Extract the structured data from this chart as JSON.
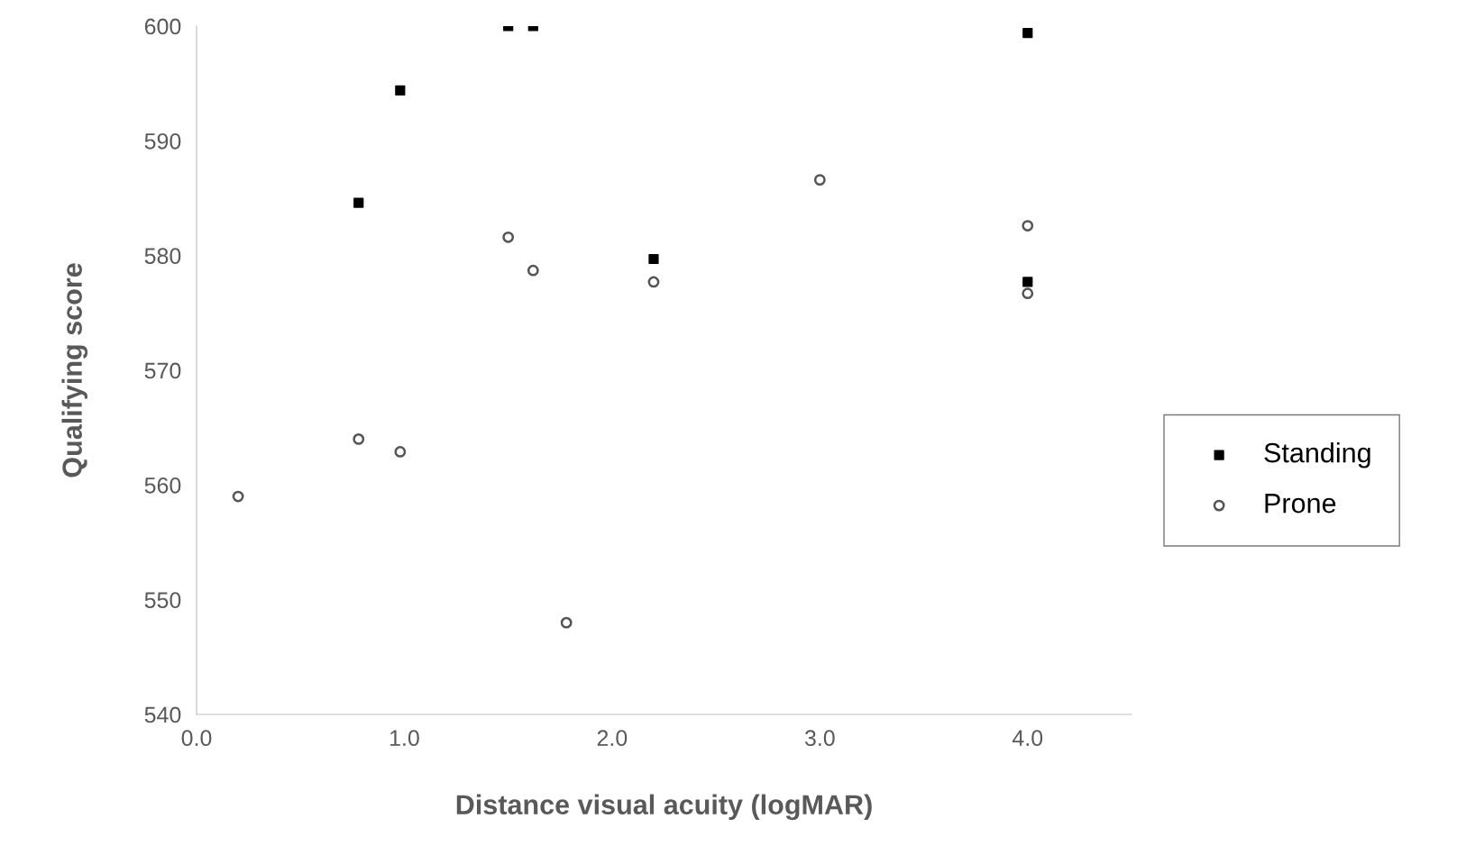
{
  "chart_data": {
    "type": "scatter",
    "xlabel": "Distance visual acuity (logMAR)",
    "ylabel": "Qualifying score",
    "xlim": [
      0,
      4.5
    ],
    "xticks": [
      {
        "value": 0,
        "label": "0.0"
      },
      {
        "value": 1,
        "label": "1.0"
      },
      {
        "value": 2,
        "label": "2.0"
      },
      {
        "value": 3,
        "label": "3.0"
      },
      {
        "value": 4,
        "label": "4.0"
      }
    ],
    "ylim": [
      540,
      600
    ],
    "yticks": [
      540,
      550,
      560,
      570,
      580,
      590,
      600
    ],
    "grid": false,
    "legend": "right",
    "series": [
      {
        "name": "Standing",
        "color": "#000000",
        "marker": "square",
        "x": [
          0.78,
          0.98,
          1.5,
          1.62,
          2.2,
          4.0,
          4.0
        ],
        "values": [
          584.6,
          594.4,
          600,
          600,
          579.7,
          599.4,
          577.7
        ]
      },
      {
        "name": "Prone",
        "color": "#555555",
        "marker": "circle",
        "x": [
          0.2,
          0.78,
          0.98,
          1.5,
          1.62,
          1.78,
          2.2,
          3.0,
          4.0,
          4.0
        ],
        "values": [
          559.0,
          564.0,
          562.9,
          581.6,
          578.7,
          548.0,
          577.7,
          586.6,
          582.6,
          576.7
        ]
      }
    ]
  }
}
